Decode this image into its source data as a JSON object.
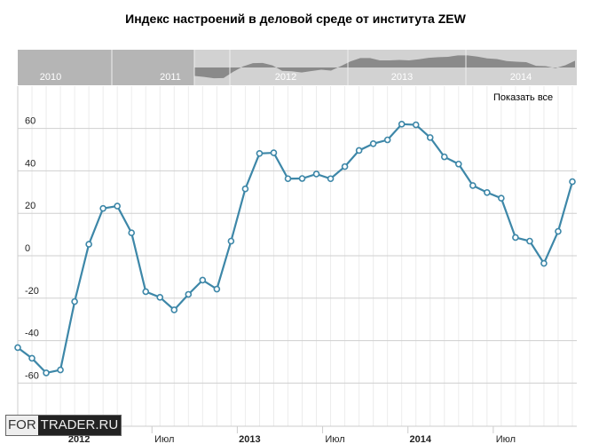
{
  "chart_data": {
    "type": "line",
    "title": "Индекс настроений в деловой среде от института ZEW",
    "x": [
      "2011-09",
      "2011-10",
      "2011-11",
      "2011-12",
      "2012-01",
      "2012-02",
      "2012-03",
      "2012-04",
      "2012-05",
      "2012-06",
      "2012-07",
      "2012-08",
      "2012-09",
      "2012-10",
      "2012-11",
      "2012-12",
      "2013-01",
      "2013-02",
      "2013-03",
      "2013-04",
      "2013-05",
      "2013-06",
      "2013-07",
      "2013-08",
      "2013-09",
      "2013-10",
      "2013-11",
      "2013-12",
      "2014-01",
      "2014-02",
      "2014-03",
      "2014-04",
      "2014-05",
      "2014-06",
      "2014-07",
      "2014-08",
      "2014-09",
      "2014-10",
      "2014-11",
      "2014-12"
    ],
    "values": [
      -43.3,
      -48.3,
      -55.2,
      -53.8,
      -21.6,
      5.4,
      22.3,
      23.4,
      10.8,
      -16.9,
      -19.6,
      -25.5,
      -18.2,
      -11.5,
      -15.7,
      6.9,
      31.5,
      48.2,
      48.5,
      36.3,
      36.4,
      38.5,
      36.3,
      42.0,
      49.6,
      52.8,
      54.6,
      62.0,
      61.7,
      55.7,
      46.6,
      43.2,
      33.1,
      29.8,
      27.1,
      8.6,
      6.9,
      -3.6,
      11.5,
      34.9
    ],
    "ylim": [
      -80,
      70
    ],
    "yticks": [
      "60",
      "40",
      "20",
      "0",
      "-20",
      "-40",
      "-60"
    ],
    "ytick_values": [
      60,
      40,
      20,
      0,
      -20,
      -40,
      -60
    ],
    "xticks": [
      {
        "label": "2012",
        "bold": true,
        "month": "2012-01"
      },
      {
        "label": "Июл",
        "bold": false,
        "month": "2012-07"
      },
      {
        "label": "2013",
        "bold": true,
        "month": "2013-01"
      },
      {
        "label": "Июл",
        "bold": false,
        "month": "2013-07"
      },
      {
        "label": "2014",
        "bold": true,
        "month": "2014-01"
      },
      {
        "label": "Июл",
        "bold": false,
        "month": "2014-07"
      }
    ],
    "grid": true,
    "line_color": "#3d87a8",
    "navigator": {
      "years": [
        "2010",
        "2011",
        "2012",
        "2013",
        "2014"
      ]
    }
  },
  "controls": {
    "show_all": "Показать все"
  },
  "logo": {
    "part1": "FOR",
    "part2": "TRADER.RU"
  }
}
